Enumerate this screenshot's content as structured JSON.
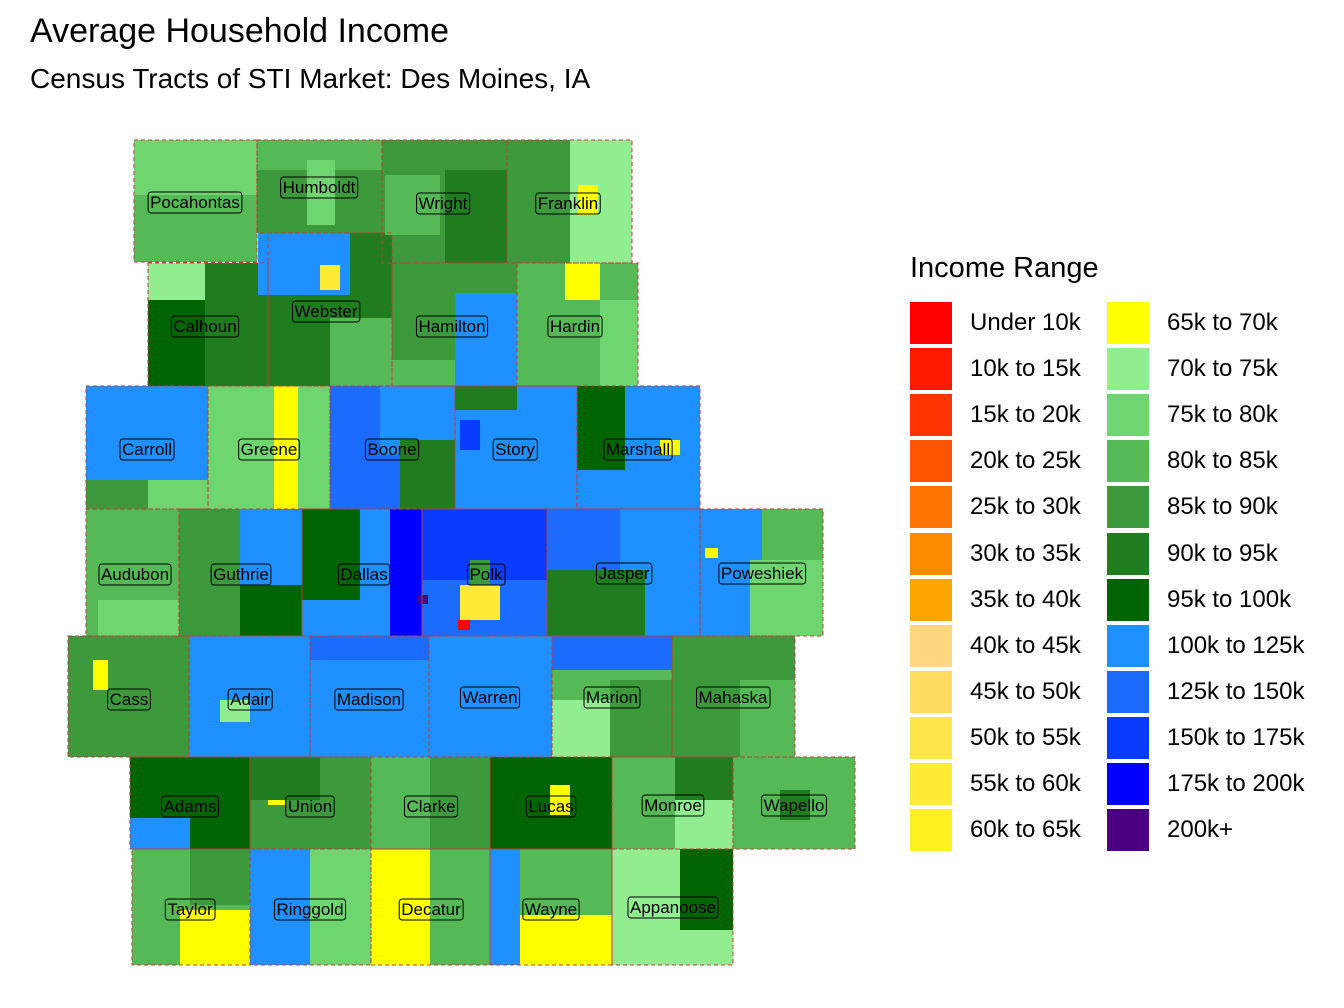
{
  "title": "Average Household Income",
  "subtitle": "Census Tracts of STI Market: Des Moines, IA",
  "legend": {
    "title": "Income Range",
    "items": [
      {
        "label": "Under 10k",
        "color": "#FF0000"
      },
      {
        "label": "10k to 15k",
        "color": "#FF1A00"
      },
      {
        "label": "15k to 20k",
        "color": "#FF3300"
      },
      {
        "label": "20k to 25k",
        "color": "#FF5500"
      },
      {
        "label": "25k to 30k",
        "color": "#FF7300"
      },
      {
        "label": "30k to 35k",
        "color": "#FF8C00"
      },
      {
        "label": "35k to 40k",
        "color": "#FFA500"
      },
      {
        "label": "40k to 45k",
        "color": "#FFD780"
      },
      {
        "label": "45k to 50k",
        "color": "#FFDC60"
      },
      {
        "label": "50k to 55k",
        "color": "#FFE44A"
      },
      {
        "label": "55k to 60k",
        "color": "#FFEA35"
      },
      {
        "label": "60k to 65k",
        "color": "#FFF020"
      },
      {
        "label": "65k to 70k",
        "color": "#FFFF00"
      },
      {
        "label": "70k to 75k",
        "color": "#90EE90"
      },
      {
        "label": "75k to 80k",
        "color": "#6FD56F"
      },
      {
        "label": "80k to 85k",
        "color": "#55B955"
      },
      {
        "label": "85k to 90k",
        "color": "#3C9A3C"
      },
      {
        "label": "90k to 95k",
        "color": "#1F7D1F"
      },
      {
        "label": "95k to 100k",
        "color": "#006400"
      },
      {
        "label": "100k to 125k",
        "color": "#1E90FF"
      },
      {
        "label": "125k to 150k",
        "color": "#1C6BFF"
      },
      {
        "label": "150k to 175k",
        "color": "#0A3CFF"
      },
      {
        "label": "175k to 200k",
        "color": "#0000FF"
      },
      {
        "label": "200k+",
        "color": "#4B0082"
      }
    ]
  },
  "counties": [
    {
      "name": "Pocahontas",
      "fill": "#55B955"
    },
    {
      "name": "Humboldt",
      "fill": "#3C9A3C"
    },
    {
      "name": "Wright",
      "fill": "#3C9A3C"
    },
    {
      "name": "Franklin",
      "fill": "#3C9A3C"
    },
    {
      "name": "Calhoun",
      "fill": "#1F7D1F"
    },
    {
      "name": "Webster",
      "fill": "#1F7D1F"
    },
    {
      "name": "Hamilton",
      "fill": "#3C9A3C"
    },
    {
      "name": "Hardin",
      "fill": "#55B955"
    },
    {
      "name": "Carroll",
      "fill": "#1E90FF"
    },
    {
      "name": "Greene",
      "fill": "#6FD56F"
    },
    {
      "name": "Boone",
      "fill": "#1C6BFF"
    },
    {
      "name": "Story",
      "fill": "#1E90FF"
    },
    {
      "name": "Marshall",
      "fill": "#1E90FF"
    },
    {
      "name": "Audubon",
      "fill": "#55B955"
    },
    {
      "name": "Guthrie",
      "fill": "#3C9A3C"
    },
    {
      "name": "Dallas",
      "fill": "#1E90FF"
    },
    {
      "name": "Polk",
      "fill": "#0A3CFF"
    },
    {
      "name": "Jasper",
      "fill": "#1E90FF"
    },
    {
      "name": "Poweshiek",
      "fill": "#1E90FF"
    },
    {
      "name": "Cass",
      "fill": "#3C9A3C"
    },
    {
      "name": "Adair",
      "fill": "#1E90FF"
    },
    {
      "name": "Madison",
      "fill": "#1E90FF"
    },
    {
      "name": "Warren",
      "fill": "#1E90FF"
    },
    {
      "name": "Marion",
      "fill": "#55B955"
    },
    {
      "name": "Mahaska",
      "fill": "#3C9A3C"
    },
    {
      "name": "Adams",
      "fill": "#006400"
    },
    {
      "name": "Union",
      "fill": "#3C9A3C"
    },
    {
      "name": "Clarke",
      "fill": "#3C9A3C"
    },
    {
      "name": "Lucas",
      "fill": "#006400"
    },
    {
      "name": "Monroe",
      "fill": "#55B955"
    },
    {
      "name": "Wapello",
      "fill": "#55B955"
    },
    {
      "name": "Taylor",
      "fill": "#55B955"
    },
    {
      "name": "Ringgold",
      "fill": "#6FD56F"
    },
    {
      "name": "Decatur",
      "fill": "#55B955"
    },
    {
      "name": "Wayne",
      "fill": "#3C9A3C"
    },
    {
      "name": "Appanoose",
      "fill": "#90EE90"
    }
  ]
}
